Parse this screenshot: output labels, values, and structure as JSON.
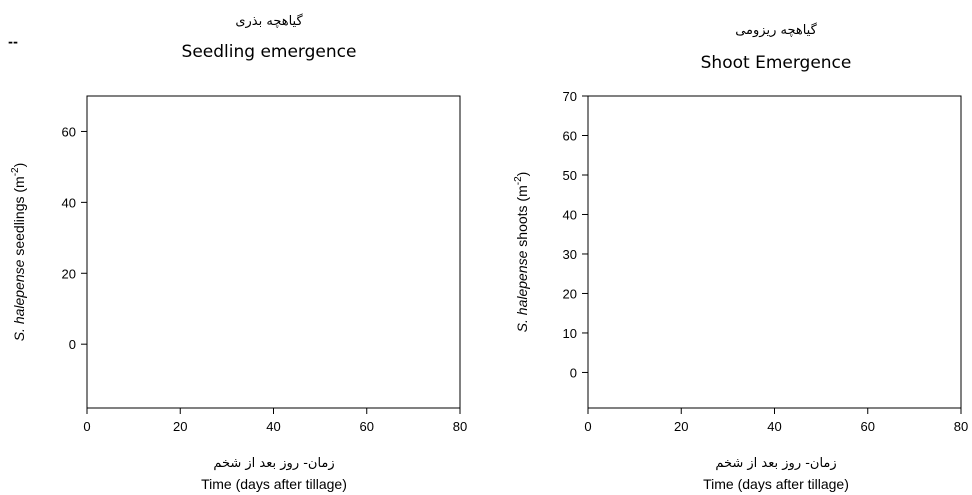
{
  "page": {
    "stray_mark": "--"
  },
  "chart_data": [
    {
      "type": "scatter",
      "title_fa": "گیاهچه بذری",
      "title": "Seedling emergence",
      "xlabel_fa": "زمان- روز بعد از شخم",
      "xlabel": "Time (days after tillage)",
      "ylabel_prefix": "S. halepense",
      "ylabel_rest": " seedlings (m",
      "ylabel_sup": "-2",
      "ylabel_close": ")",
      "xlim": [
        0,
        80
      ],
      "ylim": [
        -18,
        70
      ],
      "xticks": [
        0,
        20,
        40,
        60,
        80
      ],
      "yticks": [
        0,
        20,
        40,
        60
      ],
      "series": []
    },
    {
      "type": "scatter",
      "title_fa": "گیاهچه ریزومی",
      "title": "Shoot Emergence",
      "xlabel_fa": "زمان- روز بعد از شخم",
      "xlabel": "Time (days after tillage)",
      "ylabel_prefix": "S. halepense",
      "ylabel_rest": " shoots (m",
      "ylabel_sup": "-2",
      "ylabel_close": ")",
      "xlim": [
        0,
        80
      ],
      "ylim": [
        -9,
        70
      ],
      "xticks": [
        0,
        20,
        40,
        60,
        80
      ],
      "yticks": [
        0,
        10,
        20,
        30,
        40,
        50,
        60,
        70
      ],
      "series": []
    }
  ]
}
